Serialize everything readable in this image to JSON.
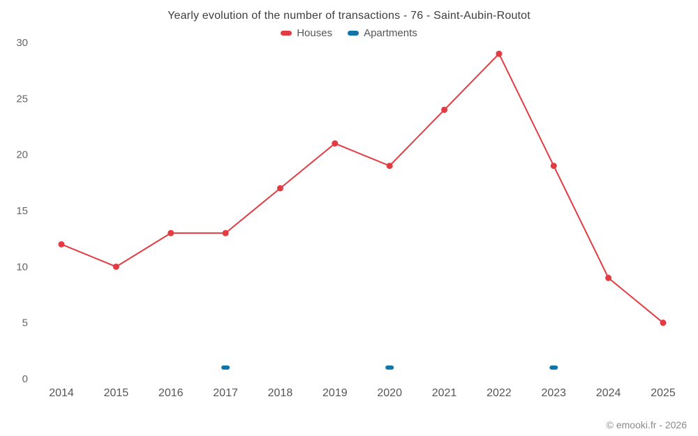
{
  "chart": {
    "title": "Yearly evolution of the number of transactions - 76 - Saint-Aubin-Routot"
  },
  "footer": {
    "credit": "© emooki.fr - 2026"
  },
  "chart_data": {
    "type": "line",
    "title": "Yearly evolution of the number of transactions - 76 - Saint-Aubin-Routot",
    "x": [
      "2014",
      "2015",
      "2016",
      "2017",
      "2018",
      "2019",
      "2020",
      "2021",
      "2022",
      "2023",
      "2024",
      "2025"
    ],
    "series": [
      {
        "name": "Houses",
        "color": "#e23b41",
        "type": "line",
        "marker": "circle",
        "values": [
          12,
          10,
          13,
          13,
          17,
          21,
          19,
          24,
          29,
          19,
          9,
          5
        ]
      },
      {
        "name": "Apartments",
        "color": "#0f74a8",
        "type": "scatter",
        "marker": "pill",
        "values": [
          null,
          null,
          null,
          1,
          null,
          null,
          1,
          null,
          null,
          1,
          null,
          null
        ]
      }
    ],
    "xlabel": "",
    "ylabel": "",
    "ylim": [
      0,
      30
    ],
    "yticks": [
      0,
      5,
      10,
      15,
      20,
      25,
      30
    ],
    "grid": false,
    "legend_position": "top"
  }
}
